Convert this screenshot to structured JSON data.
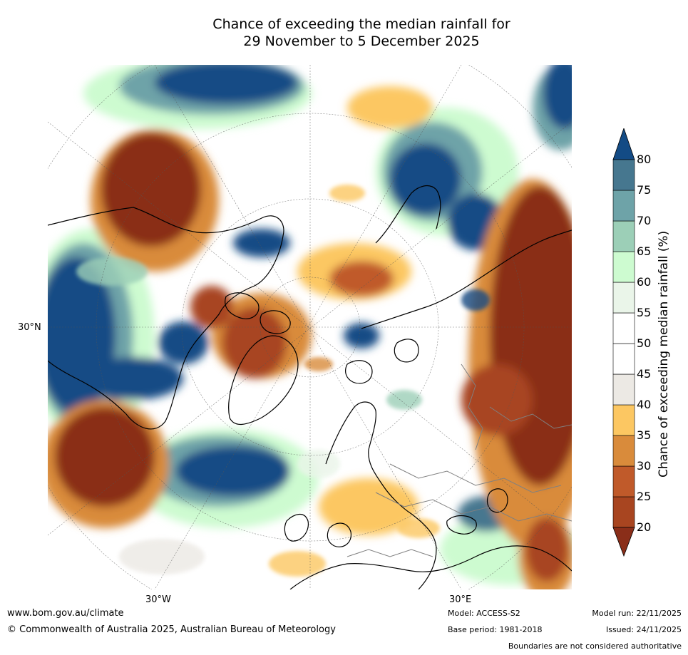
{
  "title": {
    "line1": "Chance of exceeding the median rainfall for",
    "line2": "29 November to 5 December 2025"
  },
  "map": {
    "lat_label": "30°N",
    "lon_labels": [
      "30°W",
      "30°E"
    ]
  },
  "legend": {
    "label": "Chance of exceeding median rainfall (%)",
    "ticks": [
      "20",
      "25",
      "30",
      "35",
      "40",
      "45",
      "50",
      "55",
      "60",
      "65",
      "70",
      "75",
      "80"
    ],
    "colors": {
      "below_20": "#8a2e19",
      "20_25": "#a84520",
      "25_30": "#c05a2a",
      "30_35": "#d98b3b",
      "35_40": "#fcc762",
      "40_45": "#ece9e4",
      "45_50": "#ffffff",
      "50_55": "#ffffff",
      "55_60": "#eaf5e9",
      "60_65": "#cdfbd0",
      "65_70": "#9ccfb7",
      "70_75": "#6ea3a8",
      "75_80": "#46778f",
      "above_80": "#134b85"
    }
  },
  "footer": {
    "website": "www.bom.gov.au/climate",
    "copyright": "© Commonwealth of Australia 2025, Australian Bureau of Meteorology",
    "model": "Model: ACCESS-S2",
    "base_period": "Base period: 1981-2018",
    "model_run": "Model run: 22/11/2025",
    "issued": "Issued: 24/11/2025",
    "disclaimer": "Boundaries are not considered authoritative"
  }
}
